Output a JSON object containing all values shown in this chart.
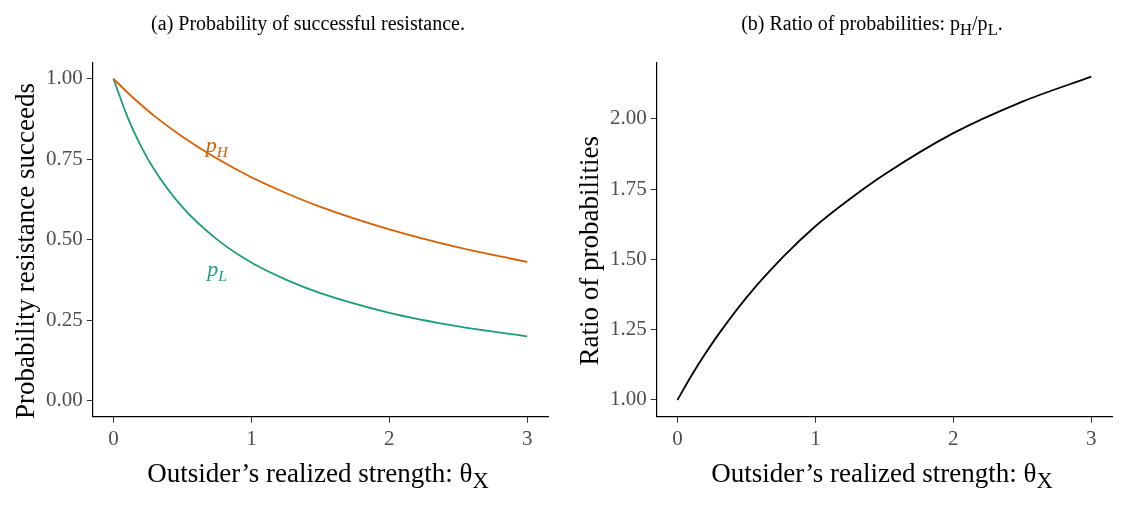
{
  "chart_data": [
    {
      "type": "line",
      "title": "(a) Probability of successful resistance.",
      "xlabel": "Outsider’s realized strength: θ$_{X}$",
      "ylabel": "Probability resistance succeeds",
      "x": [
        0,
        0.1,
        0.2,
        0.3,
        0.5,
        0.75,
        1,
        1.25,
        1.5,
        2,
        2.5,
        3
      ],
      "series": [
        {
          "name": "p$_{H}$",
          "color": "#d95f02",
          "values": [
            1,
            0.958,
            0.919,
            0.883,
            0.82,
            0.752,
            0.694,
            0.645,
            0.602,
            0.532,
            0.476,
            0.431
          ]
        },
        {
          "name": "p$_{L}$",
          "color": "#1b9e77",
          "values": [
            1,
            0.883,
            0.79,
            0.715,
            0.601,
            0.501,
            0.429,
            0.376,
            0.334,
            0.273,
            0.231,
            0.2
          ]
        }
      ],
      "xlim": [
        -0.15,
        3.15
      ],
      "xticks": [
        0,
        1,
        2,
        3
      ],
      "ylim": [
        -0.05,
        1.05
      ],
      "yticks": [
        {
          "value": 0,
          "label": "0.00"
        },
        {
          "value": 0.25,
          "label": "0.25"
        },
        {
          "value": 0.5,
          "label": "0.50"
        },
        {
          "value": 0.75,
          "label": "0.75"
        },
        {
          "value": 1,
          "label": "1.00"
        }
      ],
      "grid": false,
      "legend": false
    },
    {
      "type": "line",
      "title": "(b) Ratio of probabilities: p$_{H}$/p$_{L}$.",
      "xlabel": "Outsider’s realized strength: θ$_{X}$",
      "ylabel": "Ratio of probabilities",
      "x": [
        0,
        0.1,
        0.2,
        0.3,
        0.5,
        0.75,
        1,
        1.25,
        1.5,
        2,
        2.5,
        3
      ],
      "series": [
        {
          "color": "#000000",
          "values": [
            1,
            1.085,
            1.163,
            1.235,
            1.364,
            1.501,
            1.618,
            1.715,
            1.802,
            1.949,
            2.061,
            2.15
          ]
        }
      ],
      "xlim": [
        -0.15,
        3.15
      ],
      "xticks": [
        0,
        1,
        2,
        3
      ],
      "ylim": [
        0.94,
        2.2
      ],
      "yticks": [
        {
          "value": 1,
          "label": "1.00"
        },
        {
          "value": 1.25,
          "label": "1.25"
        },
        {
          "value": 1.5,
          "label": "1.50"
        },
        {
          "value": 1.75,
          "label": "1.75"
        },
        {
          "value": 2,
          "label": "2.00"
        }
      ],
      "grid": false,
      "legend": false
    }
  ]
}
